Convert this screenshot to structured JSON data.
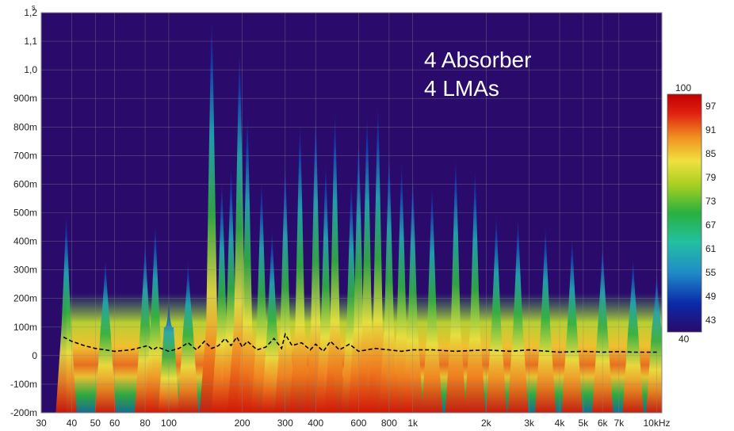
{
  "chart_data": {
    "type": "heatmap",
    "subtype": "spectrogram",
    "x_scale": "log",
    "xlim": [
      30,
      10500
    ],
    "ylim": [
      -0.2,
      1.2
    ],
    "y_unit": "s",
    "annotation": [
      "4 Absorber",
      "4 LMAs"
    ],
    "x_ticks": [
      {
        "value": 30,
        "label": "30"
      },
      {
        "value": 40,
        "label": "40"
      },
      {
        "value": 50,
        "label": "50"
      },
      {
        "value": 60,
        "label": "60"
      },
      {
        "value": 80,
        "label": "80"
      },
      {
        "value": 100,
        "label": "100"
      },
      {
        "value": 200,
        "label": "200"
      },
      {
        "value": 300,
        "label": "300"
      },
      {
        "value": 400,
        "label": "400"
      },
      {
        "value": 600,
        "label": "600"
      },
      {
        "value": 800,
        "label": "800"
      },
      {
        "value": 1000,
        "label": "1k"
      },
      {
        "value": 2000,
        "label": "2k"
      },
      {
        "value": 3000,
        "label": "3k"
      },
      {
        "value": 4000,
        "label": "4k"
      },
      {
        "value": 5000,
        "label": "5k"
      },
      {
        "value": 6000,
        "label": "6k"
      },
      {
        "value": 7000,
        "label": "7k"
      },
      {
        "value": 10000,
        "label": "10kHz"
      }
    ],
    "y_ticks": [
      {
        "value": 1.2,
        "label": "1,2"
      },
      {
        "value": 1.1,
        "label": "1,1"
      },
      {
        "value": 1.0,
        "label": "1,0"
      },
      {
        "value": 0.9,
        "label": "900m"
      },
      {
        "value": 0.8,
        "label": "800m"
      },
      {
        "value": 0.7,
        "label": "700m"
      },
      {
        "value": 0.6,
        "label": "600m"
      },
      {
        "value": 0.5,
        "label": "500m"
      },
      {
        "value": 0.4,
        "label": "400m"
      },
      {
        "value": 0.3,
        "label": "300m"
      },
      {
        "value": 0.2,
        "label": "200m"
      },
      {
        "value": 0.1,
        "label": "100m"
      },
      {
        "value": 0.0,
        "label": "0"
      },
      {
        "value": -0.1,
        "label": "-100m"
      },
      {
        "value": -0.2,
        "label": "-200m"
      }
    ],
    "colorbar": {
      "min": 40,
      "max": 100,
      "min_label": "40",
      "max_label": "100",
      "ticks": [
        {
          "value": 97,
          "label": "97"
        },
        {
          "value": 91,
          "label": "91"
        },
        {
          "value": 85,
          "label": "85"
        },
        {
          "value": 79,
          "label": "79"
        },
        {
          "value": 73,
          "label": "73"
        },
        {
          "value": 67,
          "label": "67"
        },
        {
          "value": 61,
          "label": "61"
        },
        {
          "value": 55,
          "label": "55"
        },
        {
          "value": 49,
          "label": "49"
        },
        {
          "value": 43,
          "label": "43"
        }
      ],
      "colors": [
        "#2a0a6a",
        "#0a2aa8",
        "#1f8cc8",
        "#24c0a0",
        "#28b040",
        "#a8d020",
        "#f0e040",
        "#f09020",
        "#e02010",
        "#c00000"
      ]
    },
    "series": [
      {
        "kind": "decay_peak",
        "peaks": [
          {
            "f": 38,
            "t": 0.5
          },
          {
            "f": 55,
            "t": 0.35
          },
          {
            "f": 80,
            "t": 0.41
          },
          {
            "f": 88,
            "t": 0.47
          },
          {
            "f": 100,
            "t": 0.2
          },
          {
            "f": 120,
            "t": 0.34
          },
          {
            "f": 150,
            "t": 1.19
          },
          {
            "f": 165,
            "t": 0.62
          },
          {
            "f": 180,
            "t": 0.67
          },
          {
            "f": 195,
            "t": 1.08
          },
          {
            "f": 210,
            "t": 0.85
          },
          {
            "f": 240,
            "t": 0.62
          },
          {
            "f": 265,
            "t": 0.45
          },
          {
            "f": 300,
            "t": 0.68
          },
          {
            "f": 345,
            "t": 0.82
          },
          {
            "f": 400,
            "t": 0.85
          },
          {
            "f": 440,
            "t": 0.68
          },
          {
            "f": 480,
            "t": 0.86
          },
          {
            "f": 560,
            "t": 0.62
          },
          {
            "f": 600,
            "t": 0.77
          },
          {
            "f": 650,
            "t": 0.85
          },
          {
            "f": 720,
            "t": 0.88
          },
          {
            "f": 800,
            "t": 0.72
          },
          {
            "f": 900,
            "t": 0.68
          },
          {
            "f": 1000,
            "t": 0.64
          },
          {
            "f": 1200,
            "t": 0.6
          },
          {
            "f": 1500,
            "t": 0.7
          },
          {
            "f": 1800,
            "t": 0.66
          },
          {
            "f": 2200,
            "t": 0.5
          },
          {
            "f": 2700,
            "t": 0.49
          },
          {
            "f": 3500,
            "t": 0.46
          },
          {
            "f": 4500,
            "t": 0.42
          },
          {
            "f": 6000,
            "t": 0.4
          },
          {
            "f": 8000,
            "t": 0.35
          },
          {
            "f": 10000,
            "t": 0.3
          }
        ]
      },
      {
        "kind": "dashed_line",
        "color": "#000000",
        "x": [
          37,
          40,
          45,
          50,
          55,
          60,
          70,
          78,
          82,
          86,
          90,
          100,
          110,
          120,
          130,
          140,
          150,
          160,
          170,
          180,
          190,
          200,
          210,
          230,
          250,
          270,
          290,
          300,
          320,
          350,
          380,
          400,
          430,
          460,
          500,
          550,
          600,
          700,
          800,
          900,
          1000,
          1200,
          1500,
          2000,
          2500,
          3000,
          4000,
          5000,
          6000,
          7000,
          8000,
          10000
        ],
        "y": [
          0.065,
          0.05,
          0.035,
          0.025,
          0.02,
          0.015,
          0.02,
          0.03,
          0.035,
          0.02,
          0.03,
          0.015,
          0.025,
          0.045,
          0.02,
          0.05,
          0.025,
          0.035,
          0.06,
          0.035,
          0.065,
          0.03,
          0.05,
          0.02,
          0.03,
          0.06,
          0.025,
          0.075,
          0.035,
          0.045,
          0.02,
          0.04,
          0.015,
          0.05,
          0.02,
          0.04,
          0.015,
          0.025,
          0.02,
          0.015,
          0.02,
          0.02,
          0.015,
          0.02,
          0.015,
          0.02,
          0.012,
          0.015,
          0.012,
          0.014,
          0.012,
          0.012
        ]
      }
    ]
  }
}
